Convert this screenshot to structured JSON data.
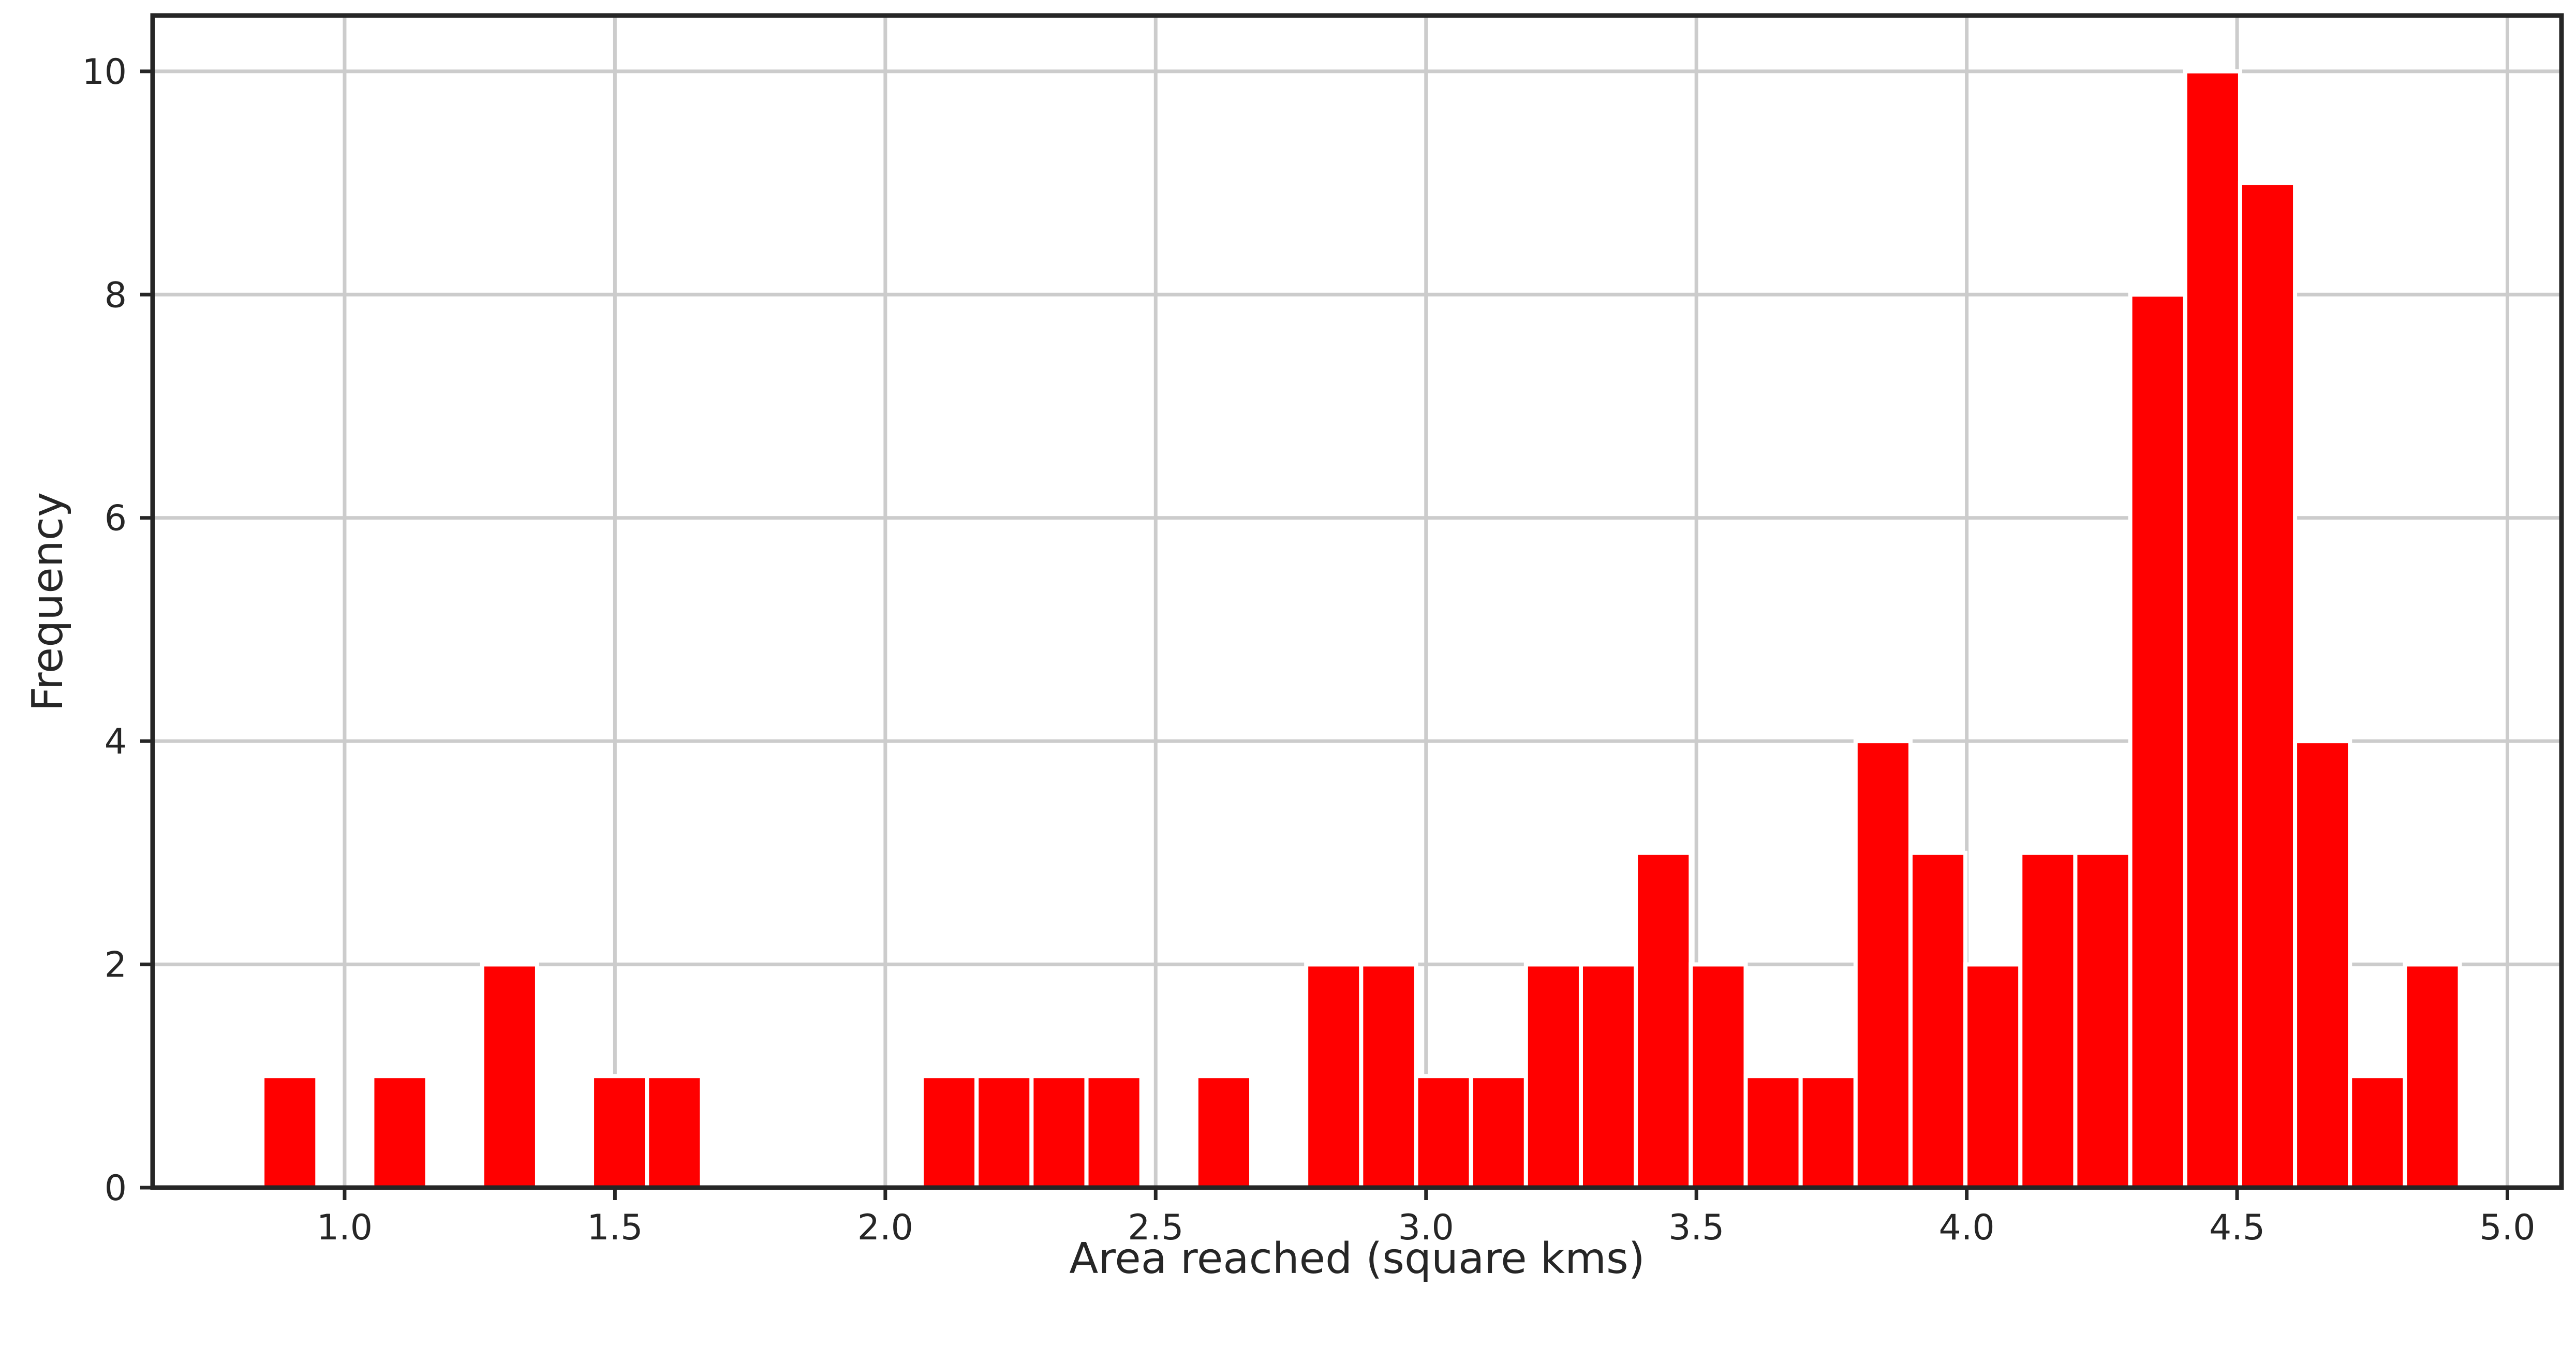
{
  "chart_data": {
    "type": "bar",
    "title": "",
    "xlabel": "Area reached (square kms)",
    "ylabel": "Frequency",
    "xlim": [
      0.645,
      5.1
    ],
    "ylim": [
      0,
      10.5
    ],
    "grid": true,
    "bar_color": "#ff0000",
    "bin_width": 0.1016,
    "bin_starts": [
      0.848,
      0.9496,
      1.0512,
      1.1528,
      1.2544,
      1.356,
      1.4576,
      1.5592,
      1.6608,
      1.7624,
      1.864,
      1.9656,
      2.0672,
      2.1688,
      2.2704,
      2.372,
      2.4736,
      2.5752,
      2.6768,
      2.7784,
      2.88,
      2.9816,
      3.0832,
      3.1848,
      3.2864,
      3.388,
      3.4896,
      3.5912,
      3.6928,
      3.7944,
      3.896,
      3.9976,
      4.0992,
      4.2008,
      4.3024,
      4.404,
      4.5056,
      4.6072,
      4.7088,
      4.8104
    ],
    "counts": [
      1,
      0,
      1,
      0,
      2,
      0,
      1,
      1,
      0,
      0,
      0,
      0,
      1,
      1,
      1,
      1,
      0,
      1,
      0,
      2,
      2,
      1,
      1,
      2,
      2,
      3,
      2,
      1,
      1,
      4,
      3,
      2,
      3,
      3,
      8,
      10,
      9,
      4,
      1,
      2
    ],
    "x_ticks": [
      "1.0",
      "1.5",
      "2.0",
      "2.5",
      "3.0",
      "3.5",
      "4.0",
      "4.5",
      "5.0"
    ],
    "x_tick_values": [
      1.0,
      1.5,
      2.0,
      2.5,
      3.0,
      3.5,
      4.0,
      4.5,
      5.0
    ],
    "y_ticks": [
      "0",
      "2",
      "4",
      "6",
      "8",
      "10"
    ],
    "y_tick_values": [
      0,
      2,
      4,
      6,
      8,
      10
    ]
  }
}
